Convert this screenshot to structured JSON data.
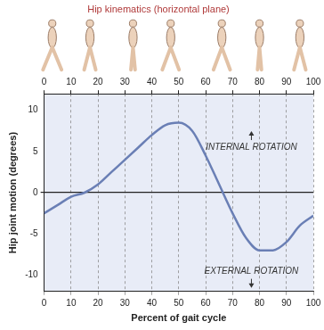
{
  "chart_data": {
    "type": "line",
    "title": "Hip kinematics (horizontal plane)",
    "x_label": "Percent of gait cycle",
    "y_label": "Hip joint motion (degrees)",
    "annotations": [
      "INTERNAL ROTATION",
      "EXTERNAL ROTATION"
    ],
    "x": [
      0,
      5,
      10,
      15,
      20,
      25,
      30,
      35,
      40,
      45,
      50,
      55,
      60,
      65,
      70,
      75,
      80,
      85,
      90,
      95,
      100
    ],
    "values": [
      -2.5,
      -1.5,
      -0.5,
      0,
      1,
      2.5,
      4,
      5.5,
      7,
      8.2,
      8.5,
      7.5,
      4.5,
      1,
      -2.5,
      -5.5,
      -7,
      -7,
      -6,
      -4,
      -2.8
    ],
    "color": "#6a7fb5",
    "xlim": [
      0,
      100
    ],
    "xticks": [
      0,
      10,
      20,
      30,
      40,
      50,
      60,
      70,
      80,
      90,
      100
    ],
    "ylim": [
      -12,
      12
    ],
    "yticks": [
      -10,
      -5,
      0,
      5,
      10
    ],
    "grid": true
  }
}
